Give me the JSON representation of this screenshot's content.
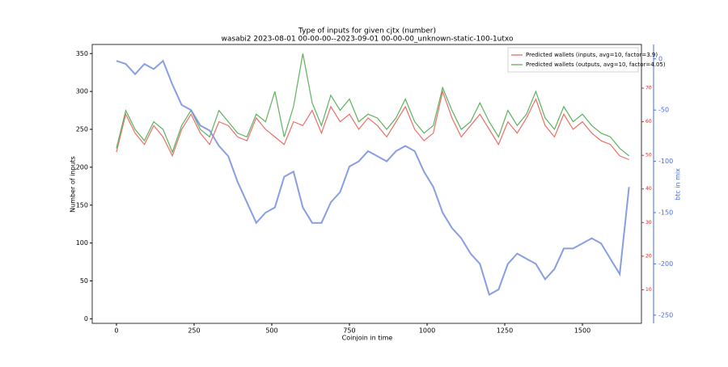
{
  "chart_data": {
    "type": "line",
    "title": "Type of inputs for given cjtx (number)",
    "subtitle": "wasabi2 2023-08-01 00-00-00--2023-09-01 00-00-00_unknown-static-100-1utxo",
    "xlabel": "Coinjoin in time",
    "ylabel": "Number of inputs",
    "y2label": "btc in mix",
    "legend": "upper right",
    "x": [
      0,
      30,
      60,
      90,
      120,
      150,
      180,
      210,
      240,
      270,
      300,
      330,
      360,
      390,
      420,
      450,
      480,
      510,
      540,
      570,
      600,
      630,
      660,
      690,
      720,
      750,
      780,
      810,
      840,
      870,
      900,
      930,
      960,
      990,
      1020,
      1050,
      1080,
      1110,
      1140,
      1170,
      1200,
      1230,
      1260,
      1290,
      1320,
      1350,
      1380,
      1410,
      1440,
      1470,
      1500,
      1530,
      1560,
      1590,
      1620,
      1650
    ],
    "series": [
      {
        "name": "Predicted wallets (inputs, avg=10, factor=3.9)",
        "color": "#e8605a",
        "values": [
          220,
          270,
          245,
          230,
          255,
          240,
          215,
          250,
          270,
          245,
          230,
          260,
          255,
          240,
          235,
          265,
          250,
          240,
          230,
          260,
          255,
          275,
          245,
          280,
          260,
          270,
          250,
          265,
          255,
          240,
          260,
          280,
          250,
          235,
          245,
          300,
          265,
          240,
          255,
          270,
          250,
          230,
          260,
          245,
          265,
          290,
          255,
          240,
          270,
          250,
          260,
          245,
          235,
          230,
          215,
          210
        ]
      },
      {
        "name": "Predicted wallets (outputs, avg=10, factor=4.05)",
        "color": "#4caa4c",
        "values": [
          225,
          275,
          250,
          235,
          260,
          250,
          220,
          255,
          275,
          250,
          240,
          275,
          260,
          245,
          240,
          270,
          260,
          300,
          240,
          280,
          350,
          285,
          255,
          295,
          275,
          290,
          260,
          270,
          265,
          250,
          265,
          290,
          260,
          245,
          255,
          305,
          275,
          250,
          260,
          285,
          260,
          240,
          275,
          255,
          270,
          300,
          265,
          250,
          280,
          260,
          270,
          255,
          245,
          240,
          225,
          215
        ]
      },
      {
        "axis": "y2",
        "color": "#7b93de",
        "values": [
          -2,
          -5,
          -15,
          -5,
          -10,
          -2,
          -25,
          -45,
          -50,
          -65,
          -70,
          -85,
          -95,
          -120,
          -140,
          -160,
          -150,
          -145,
          -115,
          -110,
          -145,
          -160,
          -160,
          -140,
          -130,
          -105,
          -100,
          -90,
          -95,
          -100,
          -90,
          -85,
          -90,
          -110,
          -125,
          -150,
          -165,
          -175,
          -190,
          -200,
          -230,
          -225,
          -200,
          -190,
          -195,
          -200,
          -215,
          -205,
          -185,
          -185,
          -180,
          -175,
          -180,
          -195,
          -210,
          -125
        ]
      }
    ],
    "xlim": [
      -78,
      1690
    ],
    "xticks": [
      0,
      250,
      500,
      750,
      1000,
      1250,
      1500
    ],
    "ylim": [
      -6,
      362
    ],
    "yticks": [
      0,
      50,
      100,
      150,
      200,
      250,
      300,
      350
    ],
    "y2lim": [
      -258,
      14
    ],
    "y2ticks": [
      0,
      -50,
      -100,
      -150,
      -200,
      -250
    ],
    "y2color": "#4a6bd8",
    "y3lim": [
      0,
      83
    ],
    "y3ticks": [
      10,
      20,
      30,
      40,
      50,
      60,
      70
    ],
    "y3color": "#d62728"
  }
}
